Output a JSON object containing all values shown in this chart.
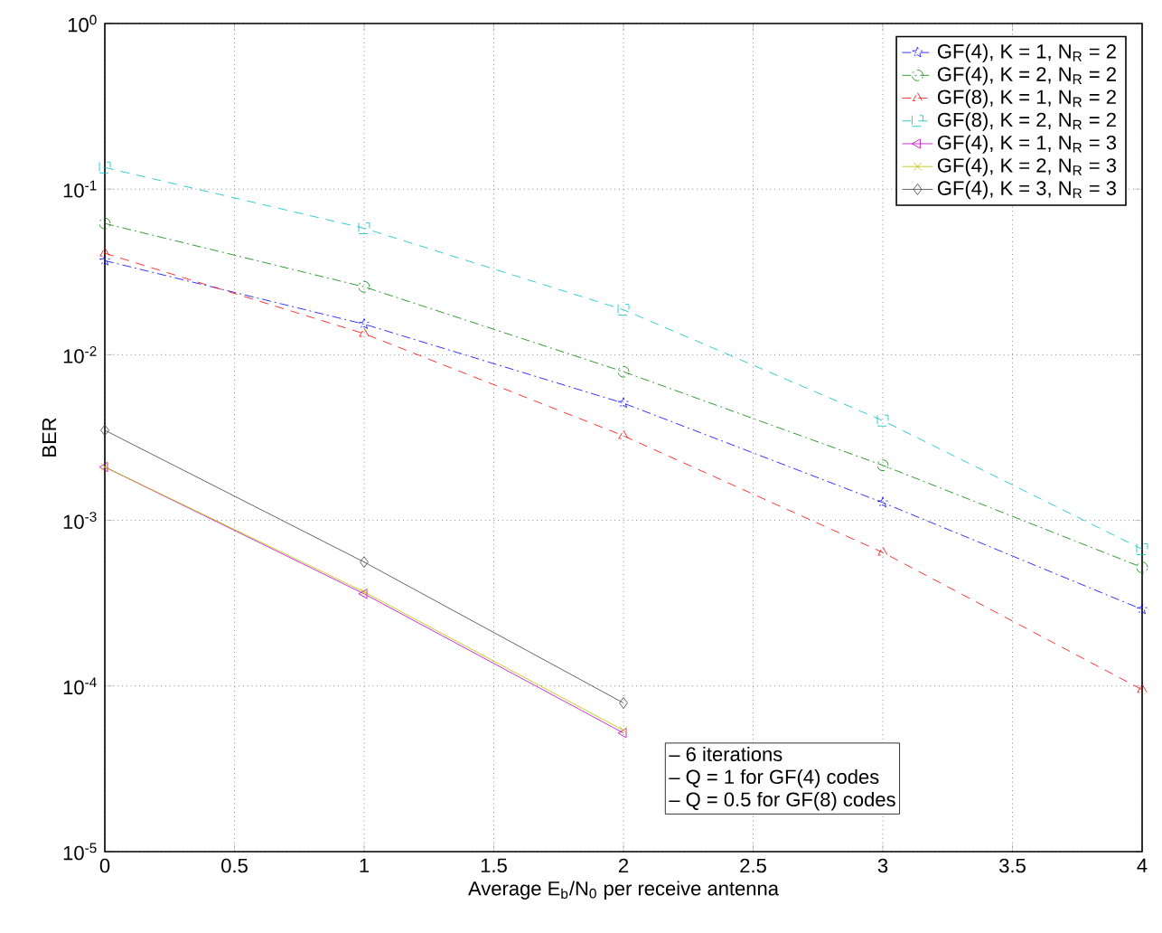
{
  "chart_data": {
    "type": "line",
    "xlabel": "Average E$_{b}$/N$_{0}$ per receive antenna",
    "ylabel": "BER",
    "x": [
      0,
      1,
      2,
      3,
      4
    ],
    "series": [
      {
        "name": "GF(4), K = 1, N$_{R}$ = 2",
        "color": "#0000ff",
        "marker": "star",
        "line_style": "dashdot",
        "values": [
          0.037,
          0.0153,
          0.0051,
          0.00128,
          0.00029
        ]
      },
      {
        "name": "GF(4), K = 2, N$_{R}$ = 2",
        "color": "#008000",
        "marker": "circle",
        "line_style": "dashdot",
        "values": [
          0.062,
          0.0257,
          0.0079,
          0.00215,
          0.00052
        ]
      },
      {
        "name": "GF(8), K = 1, N$_{R}$ = 2",
        "color": "#ff0000",
        "marker": "triangle",
        "line_style": "dashed",
        "values": [
          0.041,
          0.0134,
          0.00324,
          0.00064,
          9.5e-05
        ]
      },
      {
        "name": "GF(8), K = 2, N$_{R}$ = 2",
        "color": "#00bfbf",
        "marker": "square",
        "line_style": "dashed",
        "values": [
          0.135,
          0.058,
          0.0187,
          0.004,
          0.00067
        ]
      },
      {
        "name": "GF(4), K = 1, N$_{R}$ = 3",
        "color": "#bf00bf",
        "marker": "triangle-left",
        "line_style": "solid",
        "values": [
          0.0021,
          0.00036,
          5.2e-05,
          null,
          null
        ]
      },
      {
        "name": "GF(4), K = 2, N$_{R}$ = 3",
        "color": "#bfbf00",
        "marker": "cross",
        "line_style": "solid",
        "values": [
          0.0021,
          0.00037,
          5.4e-05,
          null,
          null
        ]
      },
      {
        "name": "GF(4), K = 3, N$_{R}$ = 3",
        "color": "#404040",
        "marker": "diamond",
        "line_style": "solid",
        "values": [
          0.0035,
          0.00056,
          7.9e-05,
          null,
          null
        ]
      }
    ],
    "log": "y",
    "grid": true,
    "legend": "top right",
    "xlim": [
      0,
      4
    ],
    "xticks": [
      0,
      0.5,
      1,
      1.5,
      2,
      2.5,
      3,
      3.5,
      4
    ],
    "ylim": [
      1e-05,
      1
    ],
    "yticks": [
      {
        "value": 1e-05,
        "label": "10$^{-5}$"
      },
      {
        "value": 0.0001,
        "label": "10$^{-4}$"
      },
      {
        "value": 0.001,
        "label": "10$^{-3}$"
      },
      {
        "value": 0.01,
        "label": "10$^{-2}$"
      },
      {
        "value": 0.1,
        "label": "10$^{-1}$"
      },
      {
        "value": 1,
        "label": "10$^{0}$"
      }
    ],
    "annotations": [
      "– 6 iterations",
      "– Q = 1 for GF(4) codes",
      "– Q = 0.5 for GF(8) codes"
    ]
  }
}
